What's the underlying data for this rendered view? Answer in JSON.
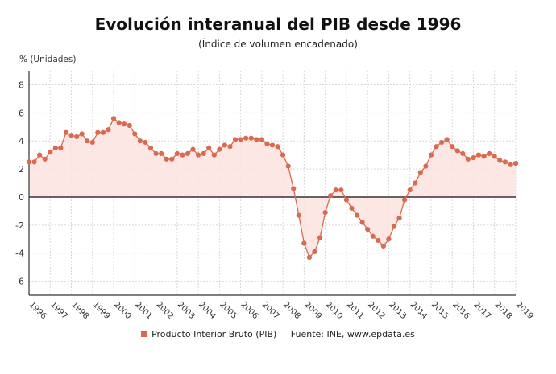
{
  "chart_data": {
    "type": "line",
    "title": "Evolución interanual del PIB desde 1996",
    "subtitle": "(Índice de volumen encadenado)",
    "ylabel": "% (Unidades)",
    "xlabel": "",
    "ylim": [
      -7,
      9
    ],
    "yticks": [
      -6,
      -4,
      -2,
      0,
      2,
      4,
      6,
      8
    ],
    "xticks": [
      "1996",
      "1997",
      "1998",
      "1999",
      "2000",
      "2001",
      "2002",
      "2003",
      "2004",
      "2005",
      "2006",
      "2007",
      "2008",
      "2009",
      "2010",
      "2011",
      "2012",
      "2013",
      "2014",
      "2015",
      "2016",
      "2017",
      "2018",
      "2019"
    ],
    "x_start": 1996,
    "x_step": 0.25,
    "grid": true,
    "legend_position": "bottom",
    "source": "Fuente: INE, www.epdata.es",
    "color": "#d9694f",
    "fill_color": "#fbe3df",
    "series": [
      {
        "name": "Producto Interior Bruto (PIB)",
        "values": [
          2.5,
          2.5,
          3.0,
          2.7,
          3.2,
          3.5,
          3.5,
          4.6,
          4.4,
          4.3,
          4.5,
          4.0,
          3.9,
          4.6,
          4.6,
          4.8,
          5.6,
          5.3,
          5.2,
          5.1,
          4.5,
          4.0,
          3.9,
          3.5,
          3.1,
          3.1,
          2.7,
          2.7,
          3.1,
          3.0,
          3.1,
          3.4,
          3.0,
          3.1,
          3.5,
          3.0,
          3.4,
          3.7,
          3.6,
          4.1,
          4.1,
          4.2,
          4.2,
          4.1,
          4.1,
          3.8,
          3.7,
          3.6,
          3.0,
          2.2,
          0.6,
          -1.3,
          -3.3,
          -4.3,
          -3.9,
          -2.9,
          -1.1,
          0.1,
          0.5,
          0.5,
          -0.2,
          -0.8,
          -1.3,
          -1.8,
          -2.3,
          -2.8,
          -3.1,
          -3.5,
          -3.0,
          -2.1,
          -1.5,
          -0.2,
          0.5,
          1.0,
          1.75,
          2.2,
          3.0,
          3.6,
          3.9,
          4.1,
          3.6,
          3.3,
          3.1,
          2.7,
          2.8,
          3.0,
          2.9,
          3.1,
          2.9,
          2.6,
          2.5,
          2.3,
          2.4
        ]
      }
    ]
  }
}
